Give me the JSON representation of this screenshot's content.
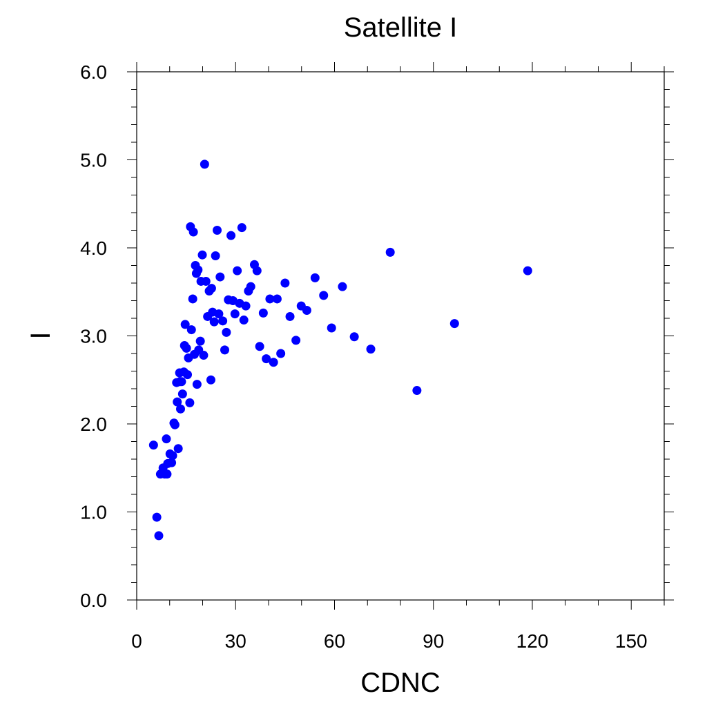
{
  "chart_data": {
    "type": "scatter",
    "title": "Satellite I",
    "xlabel": "CDNC",
    "ylabel": "I",
    "xlim": [
      0,
      160
    ],
    "ylim": [
      0,
      6
    ],
    "x_ticks": [
      "0",
      "30",
      "60",
      "90",
      "120",
      "150"
    ],
    "y_ticks": [
      "0.0",
      "1.0",
      "2.0",
      "3.0",
      "4.0",
      "5.0",
      "6.0"
    ],
    "grid": false,
    "legend": "none",
    "marker_color": "#0000ff",
    "points": [
      [
        5.1,
        1.76
      ],
      [
        6.1,
        0.94
      ],
      [
        6.7,
        0.73
      ],
      [
        7.2,
        1.43
      ],
      [
        8.0,
        1.5
      ],
      [
        8.5,
        1.43
      ],
      [
        9.0,
        1.83
      ],
      [
        9.4,
        1.55
      ],
      [
        9.2,
        1.43
      ],
      [
        10.1,
        1.66
      ],
      [
        10.6,
        1.56
      ],
      [
        10.9,
        1.64
      ],
      [
        11.3,
        2.01
      ],
      [
        11.6,
        1.99
      ],
      [
        12.1,
        2.47
      ],
      [
        12.3,
        2.25
      ],
      [
        12.6,
        1.72
      ],
      [
        13.0,
        2.58
      ],
      [
        13.1,
        2.48
      ],
      [
        13.3,
        2.17
      ],
      [
        13.6,
        2.48
      ],
      [
        13.9,
        2.34
      ],
      [
        14.3,
        2.59
      ],
      [
        14.5,
        2.89
      ],
      [
        14.7,
        3.13
      ],
      [
        15.1,
        2.86
      ],
      [
        15.4,
        2.56
      ],
      [
        15.7,
        2.75
      ],
      [
        16.1,
        2.24
      ],
      [
        16.3,
        4.24
      ],
      [
        16.6,
        3.07
      ],
      [
        17.0,
        3.42
      ],
      [
        17.2,
        4.18
      ],
      [
        17.5,
        2.79
      ],
      [
        17.8,
        3.8
      ],
      [
        18.1,
        3.71
      ],
      [
        18.3,
        2.45
      ],
      [
        18.6,
        3.75
      ],
      [
        18.8,
        2.84
      ],
      [
        19.3,
        2.94
      ],
      [
        19.5,
        3.62
      ],
      [
        19.9,
        3.92
      ],
      [
        20.3,
        2.78
      ],
      [
        20.6,
        4.95
      ],
      [
        21.0,
        3.62
      ],
      [
        21.5,
        3.22
      ],
      [
        22.0,
        3.51
      ],
      [
        22.5,
        2.5
      ],
      [
        22.7,
        3.54
      ],
      [
        23.0,
        3.27
      ],
      [
        23.5,
        3.16
      ],
      [
        23.9,
        3.91
      ],
      [
        24.4,
        4.2
      ],
      [
        24.9,
        3.25
      ],
      [
        25.3,
        3.67
      ],
      [
        26.1,
        3.17
      ],
      [
        26.7,
        2.84
      ],
      [
        27.2,
        3.04
      ],
      [
        27.8,
        3.41
      ],
      [
        28.6,
        4.14
      ],
      [
        29.2,
        3.4
      ],
      [
        29.8,
        3.25
      ],
      [
        30.5,
        3.74
      ],
      [
        31.2,
        3.37
      ],
      [
        31.9,
        4.23
      ],
      [
        32.5,
        3.18
      ],
      [
        33.1,
        3.34
      ],
      [
        33.9,
        3.51
      ],
      [
        34.6,
        3.56
      ],
      [
        35.7,
        3.81
      ],
      [
        36.5,
        3.74
      ],
      [
        37.3,
        2.88
      ],
      [
        38.4,
        3.26
      ],
      [
        39.3,
        2.74
      ],
      [
        40.4,
        3.42
      ],
      [
        41.5,
        2.7
      ],
      [
        42.6,
        3.42
      ],
      [
        43.7,
        2.8
      ],
      [
        45.0,
        3.6
      ],
      [
        46.5,
        3.22
      ],
      [
        48.3,
        2.95
      ],
      [
        49.9,
        3.34
      ],
      [
        51.6,
        3.29
      ],
      [
        54.1,
        3.66
      ],
      [
        56.7,
        3.46
      ],
      [
        59.1,
        3.09
      ],
      [
        62.4,
        3.56
      ],
      [
        66.0,
        2.99
      ],
      [
        71.0,
        2.85
      ],
      [
        76.9,
        3.95
      ],
      [
        85.0,
        2.38
      ],
      [
        96.4,
        3.14
      ],
      [
        118.6,
        3.74
      ]
    ]
  }
}
